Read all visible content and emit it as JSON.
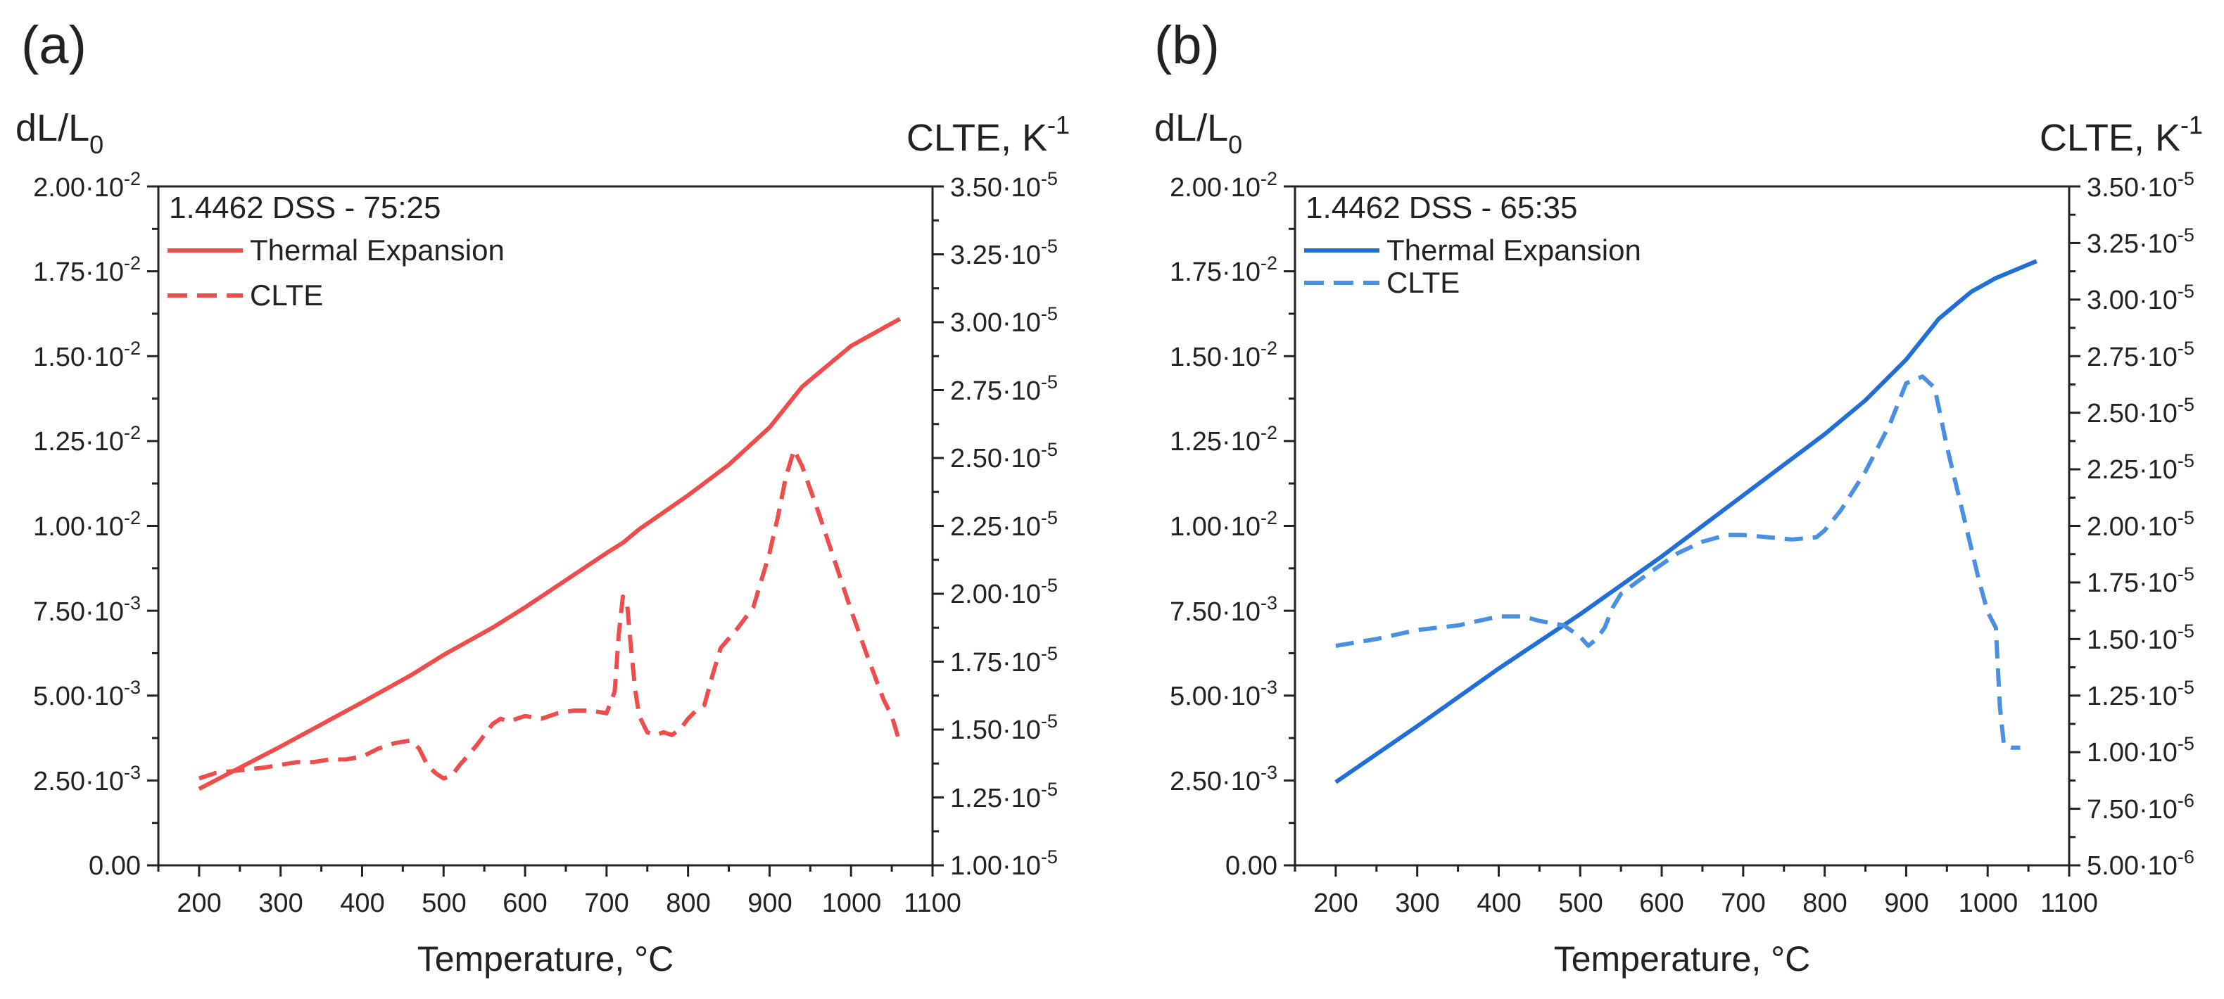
{
  "chart_data": [
    {
      "type": "line",
      "panel_label": "(a)",
      "title": "1.4462 DSS - 75:25",
      "xlabel": "Temperature, °C",
      "ylabel": "dL/L0",
      "ylabel_right": "CLTE, K-1",
      "xlim": [
        150,
        1100
      ],
      "ylim": [
        0,
        0.02
      ],
      "ylim_right": [
        1e-05,
        3.5e-05
      ],
      "x_ticks": [
        "200",
        "300",
        "400",
        "500",
        "600",
        "700",
        "800",
        "900",
        "1000",
        "1100"
      ],
      "y_ticks": [
        {
          "mant": "0.00",
          "exp": ""
        },
        {
          "mant": "2.50·10",
          "exp": "-3"
        },
        {
          "mant": "5.00·10",
          "exp": "-3"
        },
        {
          "mant": "7.50·10",
          "exp": "-3"
        },
        {
          "mant": "1.00·10",
          "exp": "-2"
        },
        {
          "mant": "1.25·10",
          "exp": "-2"
        },
        {
          "mant": "1.50·10",
          "exp": "-2"
        },
        {
          "mant": "1.75·10",
          "exp": "-2"
        },
        {
          "mant": "2.00·10",
          "exp": "-2"
        }
      ],
      "y_right_ticks": [
        {
          "mant": "1.00·10",
          "exp": "-5"
        },
        {
          "mant": "1.25·10",
          "exp": "-5"
        },
        {
          "mant": "1.50·10",
          "exp": "-5"
        },
        {
          "mant": "1.75·10",
          "exp": "-5"
        },
        {
          "mant": "2.00·10",
          "exp": "-5"
        },
        {
          "mant": "2.25·10",
          "exp": "-5"
        },
        {
          "mant": "2.50·10",
          "exp": "-5"
        },
        {
          "mant": "2.75·10",
          "exp": "-5"
        },
        {
          "mant": "3.00·10",
          "exp": "-5"
        },
        {
          "mant": "3.25·10",
          "exp": "-5"
        },
        {
          "mant": "3.50·10",
          "exp": "-5"
        }
      ],
      "series": [
        {
          "name": "Thermal Expansion",
          "axis": "left",
          "style": "solid",
          "color": "#ef4c4c",
          "x": [
            200,
            300,
            400,
            460,
            500,
            560,
            600,
            700,
            720,
            740,
            800,
            850,
            900,
            940,
            1000,
            1060
          ],
          "y": [
            0.00225,
            0.0035,
            0.0048,
            0.0056,
            0.0062,
            0.007,
            0.0076,
            0.0092,
            0.0095,
            0.0099,
            0.0109,
            0.0118,
            0.0129,
            0.0141,
            0.0153,
            0.0161
          ]
        },
        {
          "name": "CLTE",
          "axis": "right",
          "style": "dashed",
          "color": "#ef4c4c",
          "x": [
            200,
            220,
            250,
            280,
            300,
            320,
            340,
            360,
            380,
            400,
            420,
            440,
            460,
            470,
            480,
            490,
            500,
            510,
            520,
            540,
            560,
            570,
            580,
            600,
            620,
            640,
            660,
            680,
            700,
            710,
            715,
            720,
            725,
            730,
            735,
            740,
            750,
            760,
            770,
            780,
            790,
            800,
            810,
            820,
            830,
            840,
            860,
            880,
            900,
            910,
            920,
            930,
            940,
            960,
            980,
            1000,
            1020,
            1040,
            1050,
            1060
          ],
          "y": [
            1.32e-05,
            1.34e-05,
            1.35e-05,
            1.36e-05,
            1.37e-05,
            1.38e-05,
            1.38e-05,
            1.39e-05,
            1.39e-05,
            1.4e-05,
            1.43e-05,
            1.45e-05,
            1.46e-05,
            1.43e-05,
            1.37e-05,
            1.34e-05,
            1.32e-05,
            1.33e-05,
            1.37e-05,
            1.44e-05,
            1.52e-05,
            1.54e-05,
            1.53e-05,
            1.55e-05,
            1.54e-05,
            1.56e-05,
            1.57e-05,
            1.57e-05,
            1.56e-05,
            1.64e-05,
            1.85e-05,
            1.99e-05,
            1.97e-05,
            1.8e-05,
            1.65e-05,
            1.55e-05,
            1.49e-05,
            1.48e-05,
            1.49e-05,
            1.48e-05,
            1.5e-05,
            1.54e-05,
            1.57e-05,
            1.59e-05,
            1.7e-05,
            1.8e-05,
            1.87e-05,
            1.95e-05,
            2.15e-05,
            2.28e-05,
            2.43e-05,
            2.53e-05,
            2.47e-05,
            2.3e-05,
            2.12e-05,
            1.94e-05,
            1.77e-05,
            1.61e-05,
            1.55e-05,
            1.45e-05
          ]
        }
      ]
    },
    {
      "type": "line",
      "panel_label": "(b)",
      "title": "1.4462 DSS - 65:35",
      "xlabel": "Temperature, °C",
      "ylabel": "dL/L0",
      "ylabel_right": "CLTE, K-1",
      "xlim": [
        150,
        1100
      ],
      "ylim": [
        0,
        0.02
      ],
      "ylim_right": [
        5e-06,
        3.5e-05
      ],
      "x_ticks": [
        "200",
        "300",
        "400",
        "500",
        "600",
        "700",
        "800",
        "900",
        "1000",
        "1100"
      ],
      "y_ticks": [
        {
          "mant": "0.00",
          "exp": ""
        },
        {
          "mant": "2.50·10",
          "exp": "-3"
        },
        {
          "mant": "5.00·10",
          "exp": "-3"
        },
        {
          "mant": "7.50·10",
          "exp": "-3"
        },
        {
          "mant": "1.00·10",
          "exp": "-2"
        },
        {
          "mant": "1.25·10",
          "exp": "-2"
        },
        {
          "mant": "1.50·10",
          "exp": "-2"
        },
        {
          "mant": "1.75·10",
          "exp": "-2"
        },
        {
          "mant": "2.00·10",
          "exp": "-2"
        }
      ],
      "y_right_ticks": [
        {
          "mant": "5.00·10",
          "exp": "-6"
        },
        {
          "mant": "7.50·10",
          "exp": "-6"
        },
        {
          "mant": "1.00·10",
          "exp": "-5"
        },
        {
          "mant": "1.25·10",
          "exp": "-5"
        },
        {
          "mant": "1.50·10",
          "exp": "-5"
        },
        {
          "mant": "1.75·10",
          "exp": "-5"
        },
        {
          "mant": "2.00·10",
          "exp": "-5"
        },
        {
          "mant": "2.25·10",
          "exp": "-5"
        },
        {
          "mant": "2.50·10",
          "exp": "-5"
        },
        {
          "mant": "2.75·10",
          "exp": "-5"
        },
        {
          "mant": "3.00·10",
          "exp": "-5"
        },
        {
          "mant": "3.25·10",
          "exp": "-5"
        },
        {
          "mant": "3.50·10",
          "exp": "-5"
        }
      ],
      "series": [
        {
          "name": "Thermal Expansion",
          "axis": "left",
          "style": "solid",
          "color": "#1f6fd6",
          "x": [
            200,
            300,
            400,
            500,
            600,
            700,
            800,
            850,
            900,
            940,
            980,
            1010,
            1060
          ],
          "y": [
            0.00245,
            0.0041,
            0.0058,
            0.0074,
            0.0091,
            0.0109,
            0.0127,
            0.0137,
            0.0149,
            0.0161,
            0.0169,
            0.0173,
            0.0178
          ]
        },
        {
          "name": "CLTE",
          "axis": "right",
          "style": "dashed",
          "color": "#4a90e2",
          "x": [
            200,
            250,
            300,
            350,
            400,
            430,
            450,
            480,
            500,
            510,
            520,
            530,
            540,
            550,
            580,
            620,
            650,
            680,
            700,
            730,
            760,
            790,
            800,
            820,
            850,
            880,
            900,
            920,
            935,
            950,
            970,
            990,
            1000,
            1010,
            1015,
            1020,
            1030,
            1040
          ],
          "y": [
            1.47e-05,
            1.5e-05,
            1.54e-05,
            1.56e-05,
            1.6e-05,
            1.6e-05,
            1.58e-05,
            1.56e-05,
            1.51e-05,
            1.47e-05,
            1.5e-05,
            1.55e-05,
            1.64e-05,
            1.7e-05,
            1.78e-05,
            1.88e-05,
            1.93e-05,
            1.96e-05,
            1.96e-05,
            1.95e-05,
            1.94e-05,
            1.95e-05,
            1.98e-05,
            2.07e-05,
            2.24e-05,
            2.45e-05,
            2.63e-05,
            2.66e-05,
            2.61e-05,
            2.35e-05,
            2.05e-05,
            1.75e-05,
            1.62e-05,
            1.55e-05,
            1.2e-05,
            1.03e-05,
            1.02e-05,
            1.02e-05
          ]
        }
      ]
    }
  ]
}
